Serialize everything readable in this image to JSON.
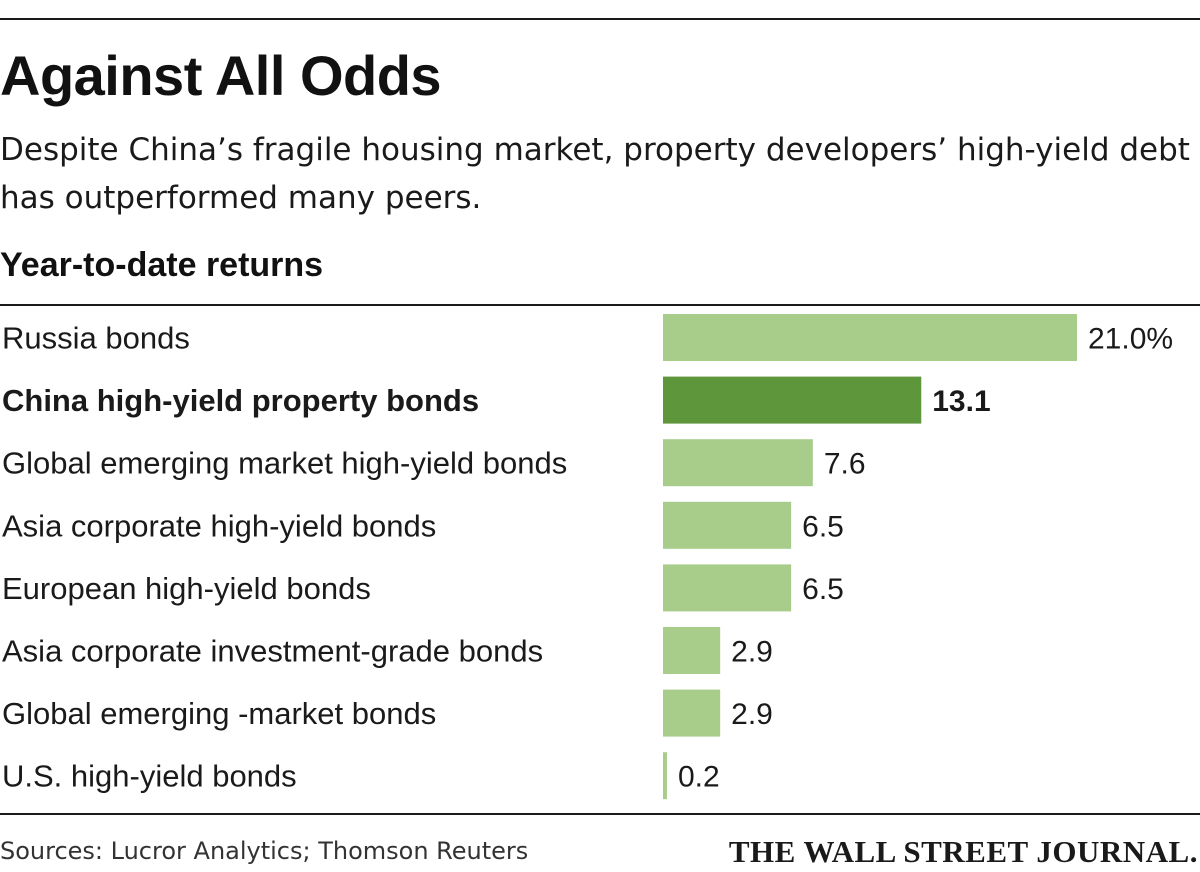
{
  "header": {
    "title": "Against All Odds",
    "subtitle": "Despite China’s fragile housing market, property developers’ high-yield debt has outperformed many peers."
  },
  "chart_data": {
    "type": "bar",
    "orientation": "horizontal",
    "title": "Year-to-date returns",
    "unit_suffix_first": "%",
    "categories": [
      "Russia bonds",
      "China high-yield property bonds",
      "Global emerging market high-yield bonds",
      "Asia corporate high-yield bonds",
      "European high-yield bonds",
      "Asia corporate investment-grade bonds",
      "Global emerging -market bonds",
      "U.S. high-yield bonds"
    ],
    "values": [
      21.0,
      13.1,
      7.6,
      6.5,
      6.5,
      2.9,
      2.9,
      0.2
    ],
    "value_labels": [
      "21.0%",
      "13.1",
      "7.6",
      "6.5",
      "6.5",
      "2.9",
      "2.9",
      "0.2"
    ],
    "highlight_index": 1,
    "xlim": [
      0,
      21.0
    ],
    "grid": false,
    "legend": "none",
    "colors": {
      "bar": "#a8cd8a",
      "highlight": "#5e963c"
    }
  },
  "footer": {
    "source": "Sources: Lucror Analytics; Thomson Reuters",
    "credit": "THE WALL STREET JOURNAL."
  }
}
